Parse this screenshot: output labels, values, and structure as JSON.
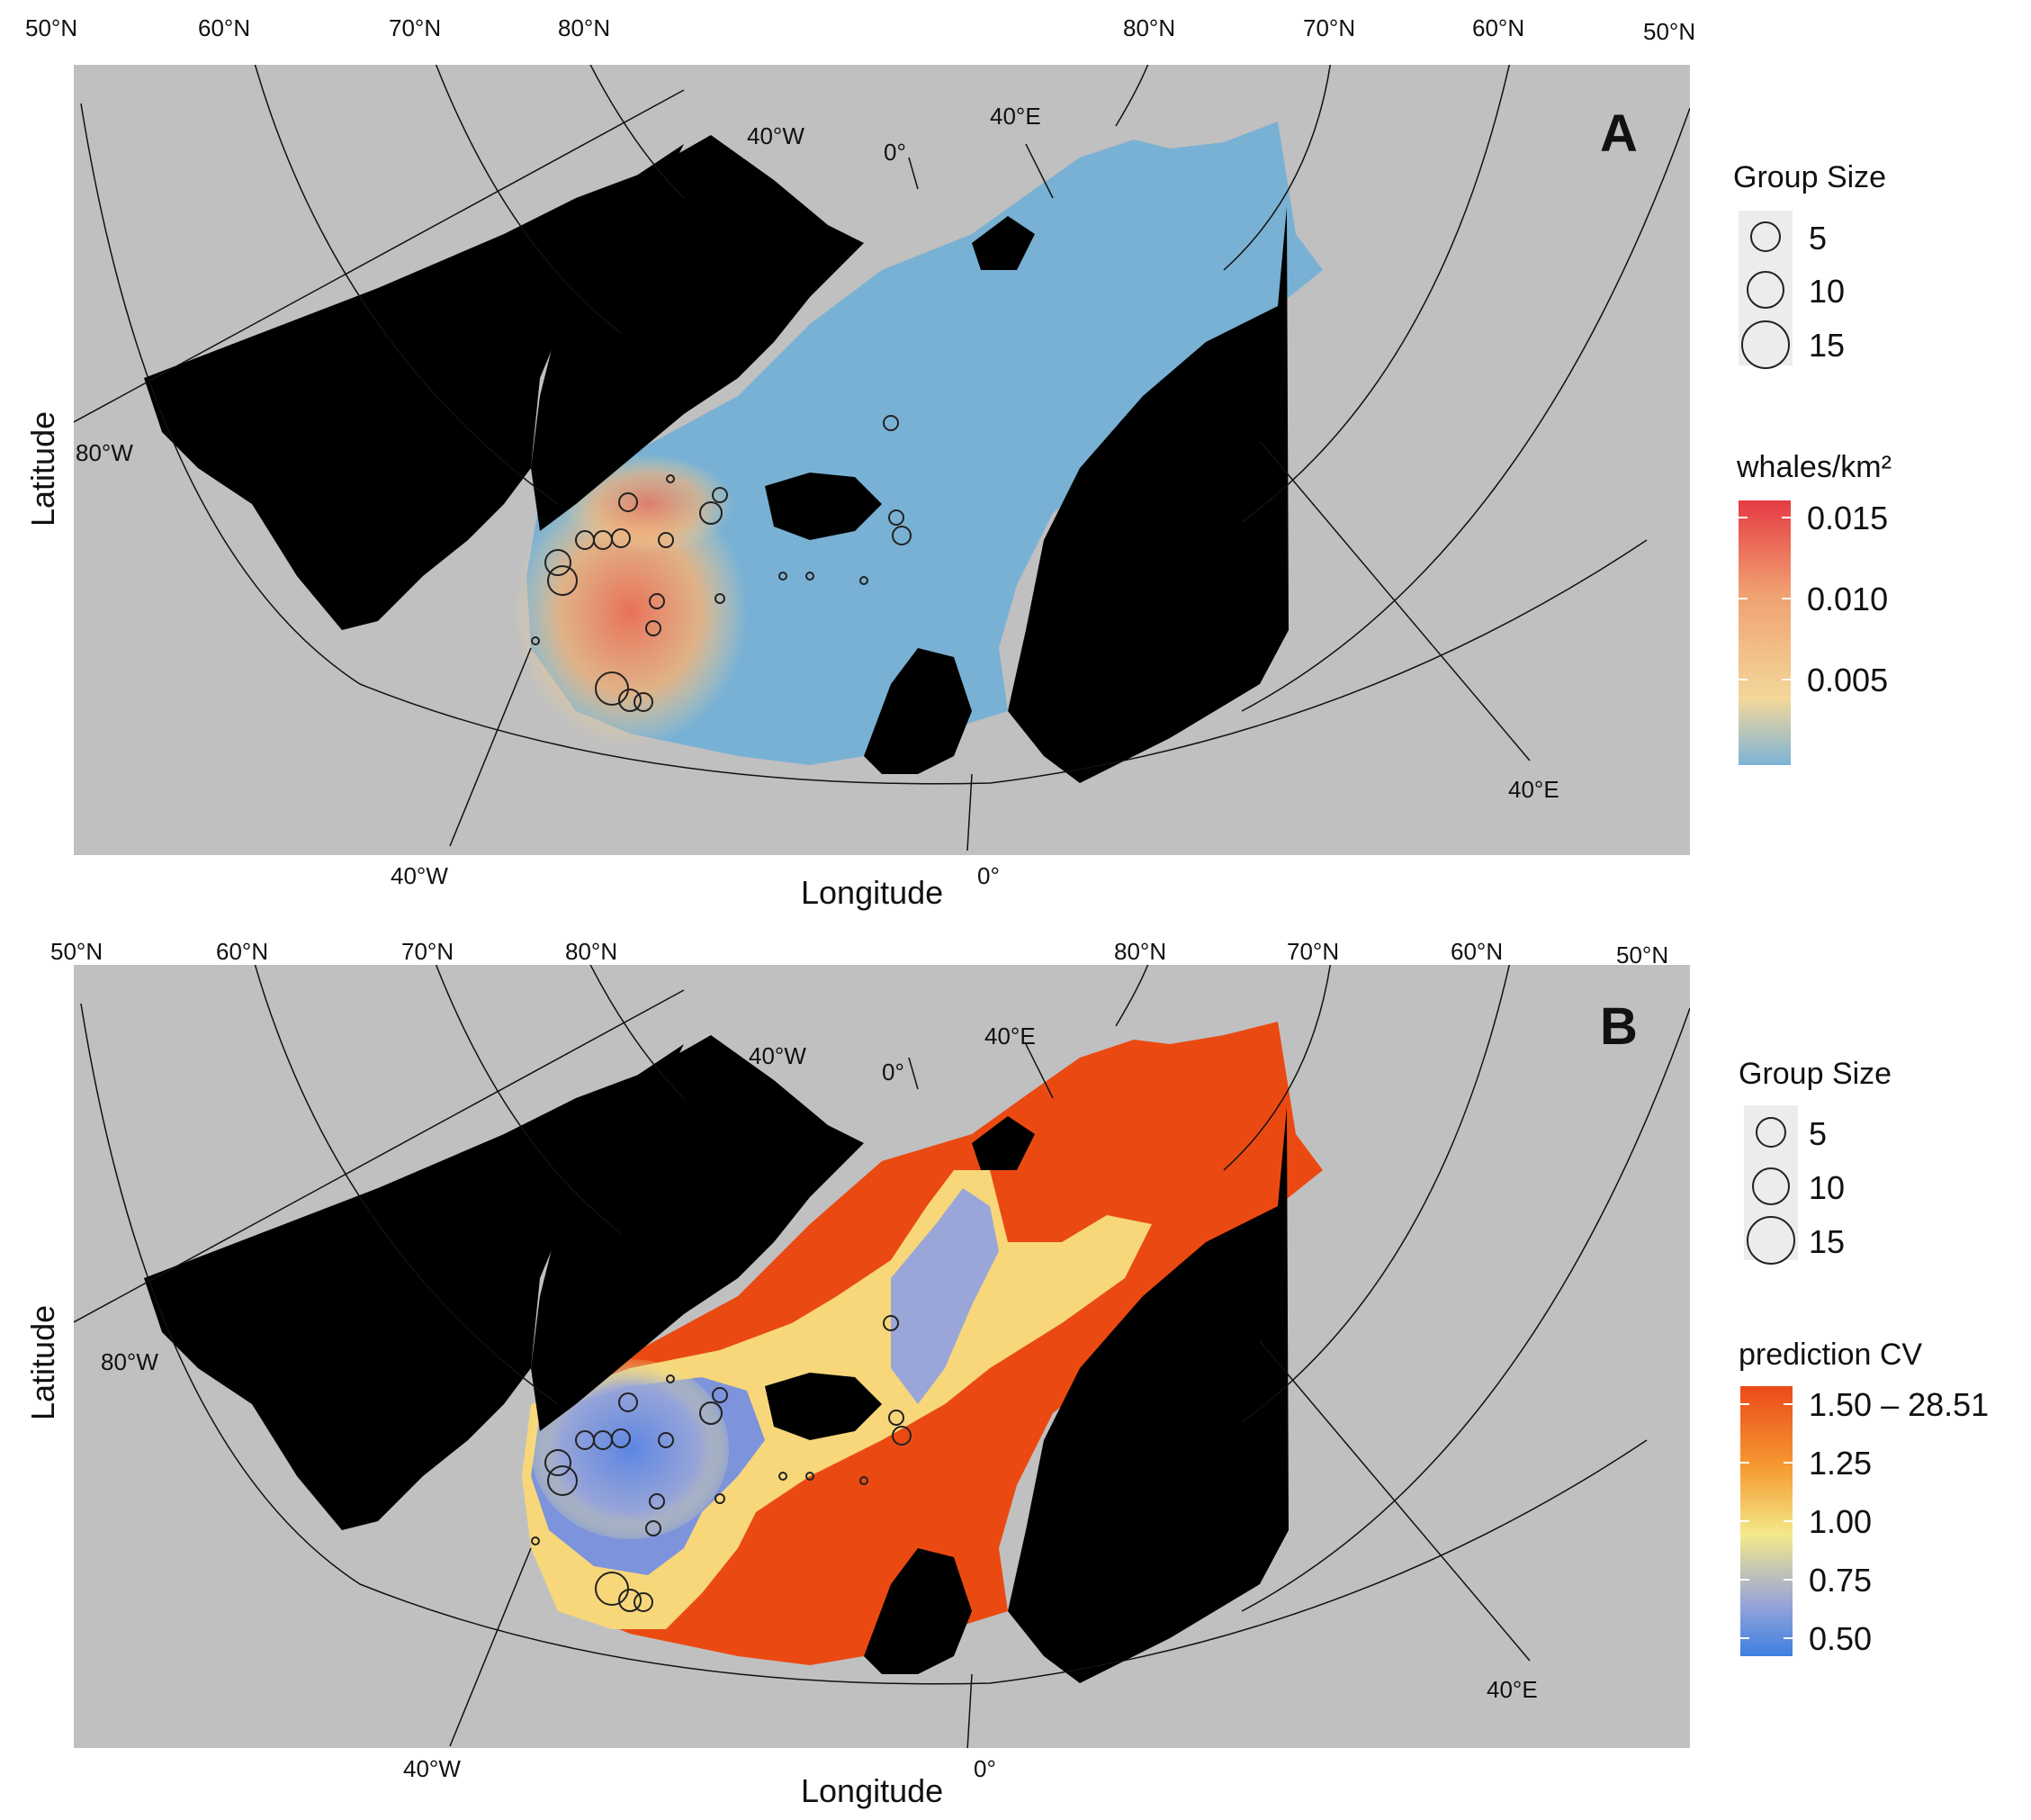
{
  "panels": [
    {
      "letter": "A",
      "axes": {
        "xlabel": "Longitude",
        "ylabel": "Latitude"
      },
      "graticule": {
        "top_left": [
          "50°N",
          "60°N",
          "70°N",
          "80°N"
        ],
        "top_right": [
          "80°N",
          "70°N",
          "60°N",
          "50°N"
        ],
        "inner": [
          "40°W",
          "0°",
          "40°E"
        ],
        "west": "80°W",
        "bottom": [
          "40°W",
          "0°"
        ],
        "east": "40°E"
      },
      "legend": {
        "group_size_title": "Group Size",
        "group_sizes": [
          "5",
          "10",
          "15"
        ],
        "scale_title": "whales/km²",
        "scale_values": [
          "0.015",
          "0.010",
          "0.005"
        ],
        "scale_colors": [
          "#e63b44",
          "#f0a070",
          "#f3d79a",
          "#7db3d6"
        ]
      }
    },
    {
      "letter": "B",
      "axes": {
        "xlabel": "Longitude",
        "ylabel": "Latitude"
      },
      "graticule": {
        "top_left": [
          "50°N",
          "60°N",
          "70°N",
          "80°N"
        ],
        "top_right": [
          "80°N",
          "70°N",
          "60°N",
          "50°N"
        ],
        "inner": [
          "40°W",
          "0°",
          "40°E"
        ],
        "west": "80°W",
        "bottom": [
          "40°W",
          "0°"
        ],
        "east": "40°E"
      },
      "legend": {
        "group_size_title": "Group Size",
        "group_sizes": [
          "5",
          "10",
          "15"
        ],
        "scale_title": "prediction CV",
        "scale_values": [
          "1.50 – 28.51",
          "1.25",
          "1.00",
          "0.75",
          "0.50"
        ],
        "scale_colors": [
          "#ec4a1a",
          "#f59a32",
          "#f4e98a",
          "#9aa6d8",
          "#3d7fe0"
        ]
      }
    }
  ],
  "colors": {
    "background": "#c0c0c0",
    "land": "#000000",
    "density_low": "#79b1d4",
    "density_high": "#e8715a",
    "cv_high": "#ea4a12",
    "cv_mid": "#f7d77a",
    "cv_low": "#6f8fe0"
  }
}
